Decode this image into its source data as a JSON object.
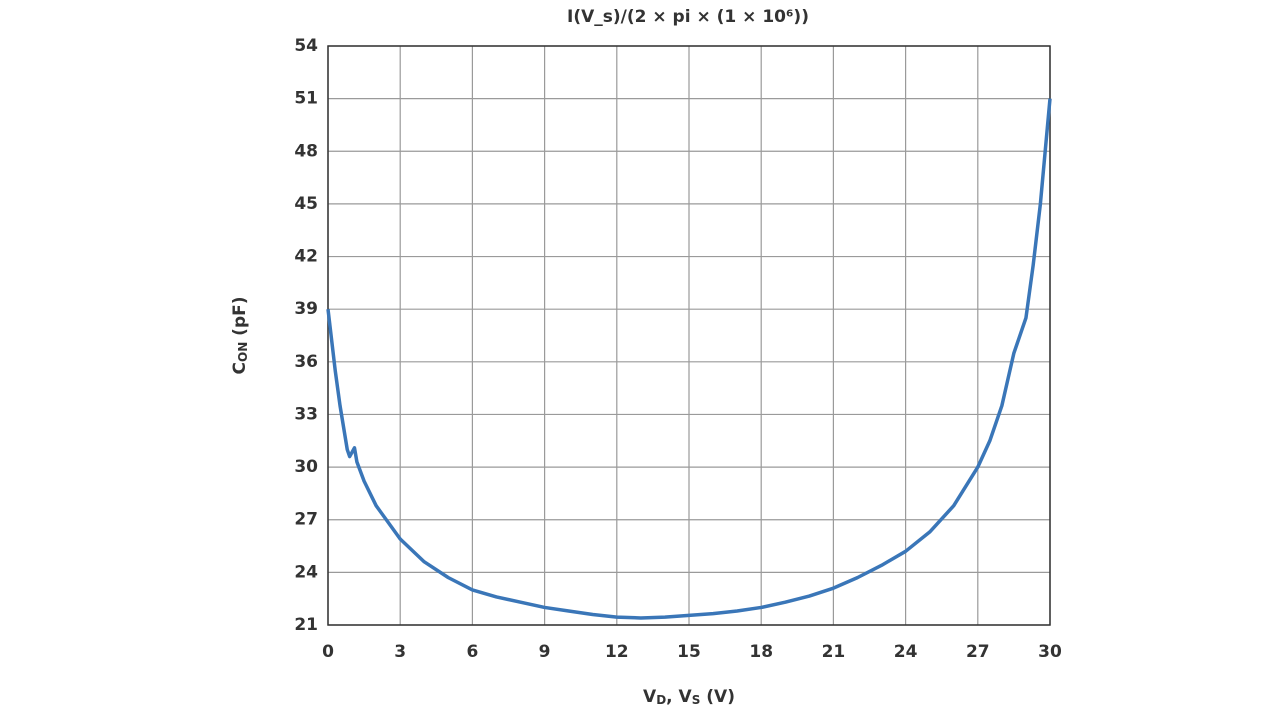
{
  "chart_data": {
    "type": "line",
    "title": "I(V_s)/(2 × pi × (1 × 10⁶))",
    "xlabel": [
      {
        "text": "V",
        "sub": "D"
      },
      {
        "text": ", V",
        "sub": "S"
      },
      {
        "text": " (V)"
      }
    ],
    "ylabel": [
      {
        "text": "C",
        "sub": "ON"
      },
      {
        "text": " (pF)"
      }
    ],
    "x": [
      0,
      0.3,
      0.5,
      0.8,
      0.9,
      1.1,
      1.2,
      1.5,
      2,
      3,
      4,
      5,
      6,
      7,
      8,
      9,
      10,
      11,
      12,
      13,
      14,
      15,
      16,
      17,
      18,
      19,
      20,
      21,
      22,
      23,
      24,
      25,
      26,
      27,
      27.5,
      28,
      28.5,
      28.7,
      29,
      29.3,
      29.6,
      29.8,
      30
    ],
    "series": [
      {
        "color": "#3a76b8",
        "values": [
          39,
          35.5,
          33.5,
          31,
          30.6,
          31.1,
          30.3,
          29.2,
          27.8,
          25.9,
          24.6,
          23.7,
          23,
          22.6,
          22.3,
          22,
          21.8,
          21.6,
          21.45,
          21.4,
          21.45,
          21.55,
          21.65,
          21.8,
          22,
          22.3,
          22.65,
          23.1,
          23.7,
          24.4,
          25.2,
          26.3,
          27.8,
          30,
          31.5,
          33.5,
          36.5,
          37.3,
          38.5,
          41.5,
          45,
          48,
          51
        ]
      }
    ],
    "xlim": [
      0,
      30
    ],
    "xticks": [
      0,
      3,
      6,
      9,
      12,
      15,
      18,
      21,
      24,
      27,
      30
    ],
    "ylim": [
      21,
      54
    ],
    "yticks": [
      21,
      24,
      27,
      30,
      33,
      36,
      39,
      42,
      45,
      48,
      51,
      54
    ],
    "grid": true
  }
}
